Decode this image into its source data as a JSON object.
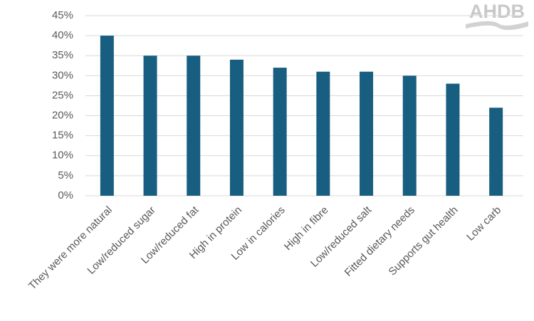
{
  "logo": "AHDB",
  "chart_data": {
    "type": "bar",
    "categories": [
      "They were more natural",
      "Low/reduced sugar",
      "Low/reduced fat",
      "High in protein",
      "Low in calories",
      "High in fibre",
      "Low/reduced salt",
      "Fitted dietary needs",
      "Supports gut health",
      "Low carb"
    ],
    "values": [
      40,
      35,
      35,
      34,
      32,
      31,
      31,
      30,
      28,
      22
    ],
    "color": "#175e80",
    "ylim": [
      0,
      45
    ],
    "yticks": [
      {
        "value": 0,
        "label": "0%"
      },
      {
        "value": 5,
        "label": "5%"
      },
      {
        "value": 10,
        "label": "10%"
      },
      {
        "value": 15,
        "label": "15%"
      },
      {
        "value": 20,
        "label": "20%"
      },
      {
        "value": 25,
        "label": "25%"
      },
      {
        "value": 30,
        "label": "30%"
      },
      {
        "value": 35,
        "label": "35%"
      },
      {
        "value": 40,
        "label": "40%"
      },
      {
        "value": 45,
        "label": "45%"
      }
    ],
    "grid": true
  }
}
